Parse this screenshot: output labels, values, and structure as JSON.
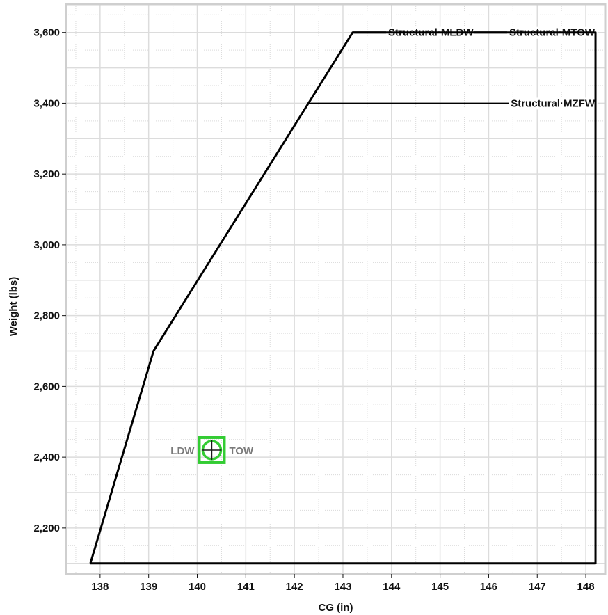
{
  "chart_data": {
    "type": "line",
    "xlabel": "CG (in)",
    "ylabel": "Weight (lbs)",
    "xlim": [
      137.3,
      148.4
    ],
    "ylim": [
      2070,
      3680
    ],
    "grid": true,
    "x_ticks": [
      138,
      139,
      140,
      141,
      142,
      143,
      144,
      145,
      146,
      147,
      148
    ],
    "x_tick_labels": [
      "138",
      "139",
      "140",
      "141",
      "142",
      "143",
      "144",
      "145",
      "146",
      "147",
      "148"
    ],
    "y_ticks": [
      2200,
      2400,
      2600,
      2800,
      3000,
      3200,
      3400,
      3600
    ],
    "y_tick_labels": [
      "2,200",
      "2,400",
      "2,600",
      "2,800",
      "3,000",
      "3,200",
      "3,400",
      "3,600"
    ],
    "series": [
      {
        "kind": "envelope",
        "color": "#000000",
        "points": [
          {
            "x": 137.8,
            "y": 2100
          },
          {
            "x": 139.1,
            "y": 2700
          },
          {
            "x": 143.2,
            "y": 3600
          },
          {
            "x": 148.2,
            "y": 3600
          },
          {
            "x": 148.2,
            "y": 2100
          },
          {
            "x": 137.8,
            "y": 2100
          }
        ]
      }
    ],
    "limits": [
      {
        "label": "Structural·MLDW",
        "y": 3600,
        "x_start": 143.2,
        "x_end": 145.7
      },
      {
        "label": "Structural·MTOW",
        "y": 3600,
        "x_start": 145.7,
        "x_end": 148.2
      },
      {
        "label": "Structural·MZFW",
        "y": 3400,
        "x_start": 142.3,
        "x_end": 148.2
      }
    ],
    "points": [
      {
        "label": "LDW",
        "x": 140.3,
        "y": 2420,
        "label_side": "left",
        "color": "#33cc33"
      },
      {
        "label": "TOW",
        "x": 140.3,
        "y": 2420,
        "label_side": "right",
        "color": "#33cc33"
      }
    ]
  }
}
